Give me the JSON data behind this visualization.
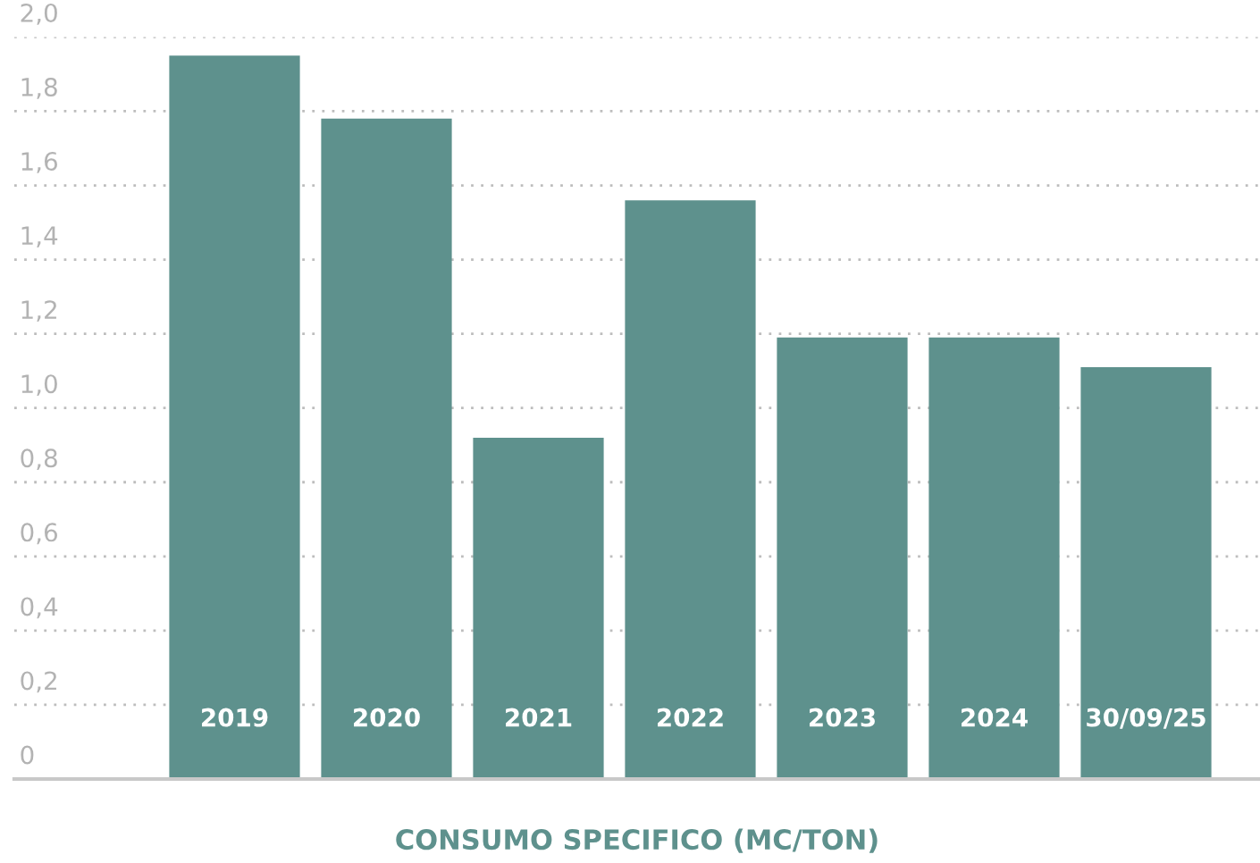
{
  "chart_data": {
    "type": "bar",
    "xlabel": "CONSUMO SPECIFICO (MC/TON)",
    "categories": [
      "2019",
      "2020",
      "2021",
      "2022",
      "2023",
      "2024",
      "30/09/25"
    ],
    "values": [
      1.95,
      1.78,
      0.92,
      1.56,
      1.19,
      1.19,
      1.11
    ],
    "color": "#5e918d",
    "ylim": [
      0,
      2.0
    ],
    "yticks": [
      {
        "value": 0,
        "label": "0"
      },
      {
        "value": 0.2,
        "label": "0,2"
      },
      {
        "value": 0.4,
        "label": "0,4"
      },
      {
        "value": 0.6,
        "label": "0,6"
      },
      {
        "value": 0.8,
        "label": "0,8"
      },
      {
        "value": 1.0,
        "label": "1,0"
      },
      {
        "value": 1.2,
        "label": "1,2"
      },
      {
        "value": 1.4,
        "label": "1,4"
      },
      {
        "value": 1.6,
        "label": "1,6"
      },
      {
        "value": 1.8,
        "label": "1,8"
      },
      {
        "value": 2.0,
        "label": "2,0"
      }
    ],
    "grid": "y",
    "legend": false
  }
}
